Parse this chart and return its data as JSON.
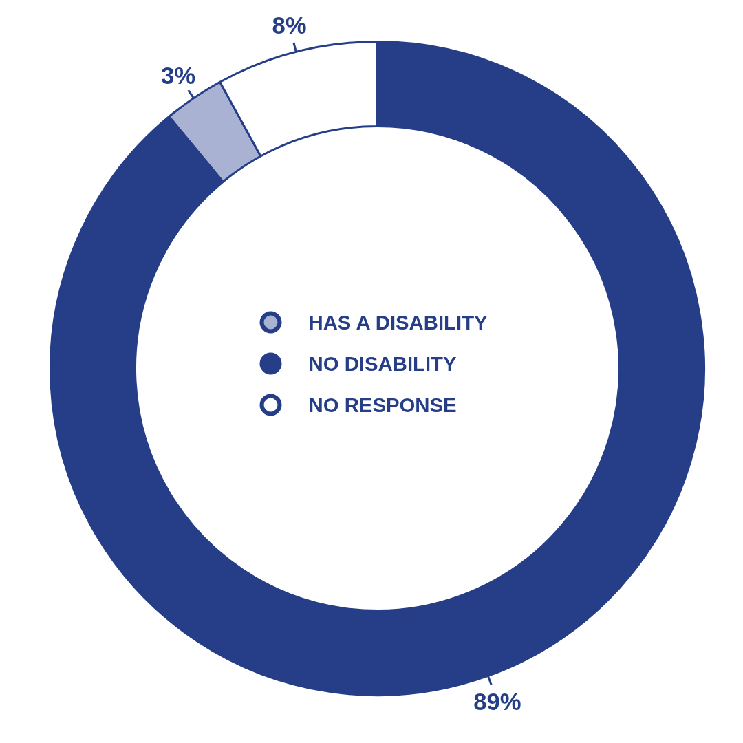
{
  "chart_data": {
    "type": "donut",
    "categories": [
      "HAS A DISABILITY",
      "NO DISABILITY",
      "NO RESPONSE"
    ],
    "values": [
      3,
      89,
      8
    ],
    "colors": [
      "#a9b2d3",
      "#263e87",
      "#ffffff"
    ],
    "value_labels": [
      "3%",
      "89%",
      "8%"
    ],
    "legend": "center"
  }
}
